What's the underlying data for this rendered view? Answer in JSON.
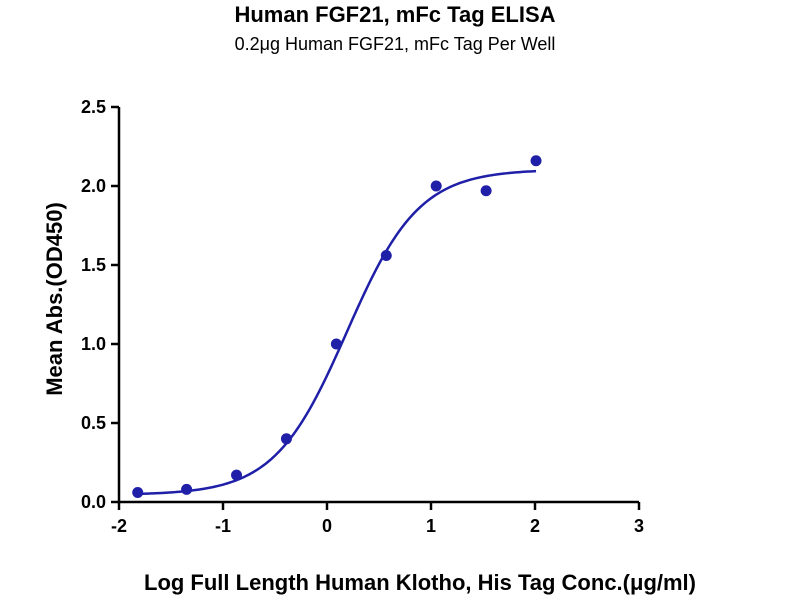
{
  "chart_data": {
    "type": "scatter",
    "title": "Human FGF21, mFc Tag ELISA",
    "subtitle": "0.2μg Human FGF21, mFc Tag Per Well",
    "xlabel": "Log Full Length Human Klotho, His Tag Conc.(μg/ml)",
    "ylabel": "Mean Abs.(OD450)",
    "xlim": [
      -2,
      3
    ],
    "ylim": [
      0,
      2.5
    ],
    "x_ticks": [
      "-2",
      "-1",
      "0",
      "1",
      "2",
      "3"
    ],
    "y_ticks": [
      "0.0",
      "0.5",
      "1.0",
      "1.5",
      "2.0",
      "2.5"
    ],
    "grid": false,
    "colors": {
      "series": "#1f1fa8",
      "axis": "#000000"
    },
    "series": [
      {
        "points": [
          {
            "x": -1.82,
            "y": 0.06
          },
          {
            "x": -1.35,
            "y": 0.08
          },
          {
            "x": -0.87,
            "y": 0.17
          },
          {
            "x": -0.39,
            "y": 0.4
          },
          {
            "x": 0.09,
            "y": 1.0
          },
          {
            "x": 0.57,
            "y": 1.56
          },
          {
            "x": 1.05,
            "y": 2.0
          },
          {
            "x": 1.53,
            "y": 1.97
          },
          {
            "x": 2.01,
            "y": 2.16
          }
        ],
        "fit_curve": {
          "model": "4PL",
          "bottom": 0.045,
          "top": 2.105,
          "log_ec50": 0.19,
          "hill_slope": 1.25,
          "x_range": [
            -1.82,
            2.01
          ]
        }
      }
    ]
  }
}
